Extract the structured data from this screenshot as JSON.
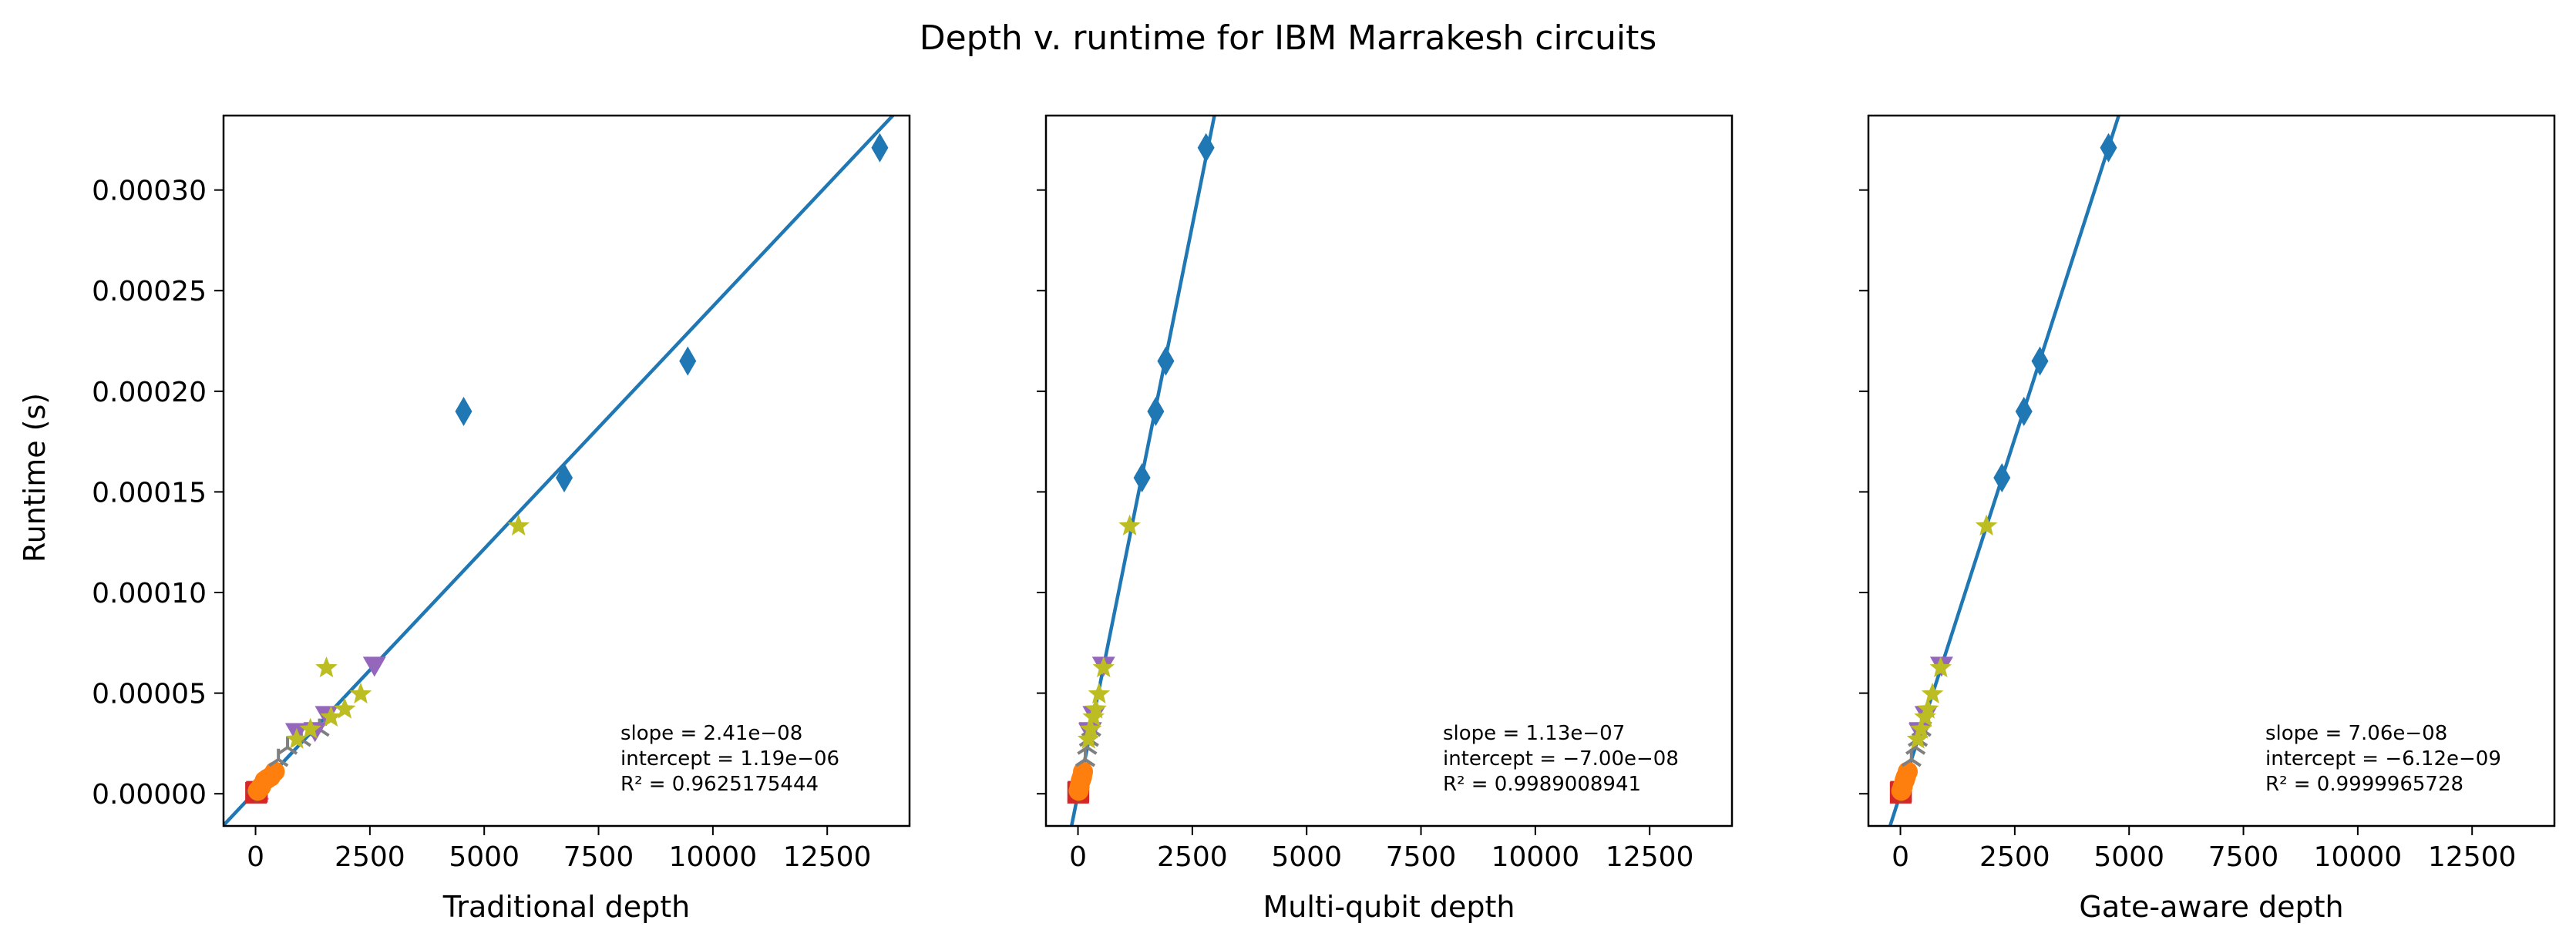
{
  "figure": {
    "title": "Depth v. runtime for IBM Marrakesh circuits",
    "ylabel": "Runtime (s)"
  },
  "chart_data": [
    {
      "type": "scatter",
      "xlabel": "Traditional depth",
      "ylabel": "Runtime (s)",
      "xlim": [
        -700,
        14300
      ],
      "ylim": [
        -1.6e-05,
        0.000337
      ],
      "xticks": [
        0,
        2500,
        5000,
        7500,
        10000,
        12500
      ],
      "yticks": [
        0.0,
        5e-05,
        0.0001,
        0.00015,
        0.0002,
        0.00025,
        0.0003
      ],
      "ytick_labels": [
        "0.00000",
        "0.00005",
        "0.00010",
        "0.00015",
        "0.00020",
        "0.00025",
        "0.00030"
      ],
      "fit": {
        "slope": 2.41e-08,
        "intercept": 1.19e-06
      },
      "annotation": {
        "slope": "slope = 2.41e−08",
        "intercept": "intercept = 1.19e−06",
        "r2": "R² = 0.9625175444"
      },
      "series": [
        {
          "marker": "diamond",
          "color": "#1f77b4",
          "points": [
            [
              13650,
              0.000321
            ],
            [
              9450,
              0.000215
            ],
            [
              6750,
              0.000157
            ],
            [
              4550,
              0.00019
            ]
          ]
        },
        {
          "marker": "star",
          "color": "#bcbd22",
          "points": [
            [
              5750,
              0.000133
            ],
            [
              1550,
              6.25e-05
            ],
            [
              2300,
              4.95e-05
            ],
            [
              1950,
              4.2e-05
            ],
            [
              1650,
              3.8e-05
            ],
            [
              1200,
              3.2e-05
            ],
            [
              900,
              2.7e-05
            ]
          ]
        },
        {
          "marker": "triangle-down",
          "color": "#9467bd",
          "points": [
            [
              2600,
              6.35e-05
            ],
            [
              1550,
              3.9e-05
            ],
            [
              1300,
              3.1e-05
            ],
            [
              900,
              3.05e-05
            ]
          ]
        },
        {
          "marker": "tri",
          "color": "#7f7f7f",
          "points": [
            [
              1400,
              3.2e-05
            ],
            [
              1000,
              2.7e-05
            ],
            [
              700,
              2.3e-05
            ],
            [
              500,
              1.7e-05
            ]
          ]
        },
        {
          "marker": "circle",
          "color": "#ff7f0e",
          "points": [
            [
              420,
              1.1e-05
            ],
            [
              330,
              8.5e-06
            ],
            [
              260,
              7.5e-06
            ],
            [
              200,
              6.5e-06
            ],
            [
              120,
              3.5e-06
            ],
            [
              50,
              1.5e-06
            ]
          ]
        },
        {
          "marker": "pentagon",
          "color": "#2ca02c",
          "points": [
            [
              160,
              4.5e-06
            ],
            [
              80,
              2e-06
            ]
          ]
        },
        {
          "marker": "plus",
          "color": "#8c564b",
          "points": [
            [
              60,
              2e-06
            ],
            [
              20,
              1e-06
            ]
          ]
        },
        {
          "marker": "square",
          "color": "#d62728",
          "points": [
            [
              30,
              1e-06
            ],
            [
              10,
              5e-07
            ]
          ]
        },
        {
          "marker": "x",
          "color": "#e377c2",
          "points": [
            [
              80,
              1e-06
            ],
            [
              15,
              5e-07
            ]
          ]
        }
      ]
    },
    {
      "type": "scatter",
      "xlabel": "Multi-qubit depth",
      "ylabel": "",
      "xlim": [
        -700,
        14300
      ],
      "ylim": [
        -1.6e-05,
        0.000337
      ],
      "xticks": [
        0,
        2500,
        5000,
        7500,
        10000,
        12500
      ],
      "fit": {
        "slope": 1.13e-07,
        "intercept": -7e-08
      },
      "annotation": {
        "slope": "slope = 1.13e−07",
        "intercept": "intercept = −7.00e−08",
        "r2": "R² = 0.9989008941"
      },
      "series": [
        {
          "marker": "diamond",
          "color": "#1f77b4",
          "points": [
            [
              2800,
              0.000321
            ],
            [
              1920,
              0.000215
            ],
            [
              1700,
              0.00019
            ],
            [
              1400,
              0.000157
            ]
          ]
        },
        {
          "marker": "star",
          "color": "#bcbd22",
          "points": [
            [
              1130,
              0.000133
            ],
            [
              560,
              6.25e-05
            ],
            [
              460,
              4.95e-05
            ],
            [
              390,
              4.2e-05
            ],
            [
              340,
              3.8e-05
            ],
            [
              280,
              3.2e-05
            ],
            [
              230,
              2.7e-05
            ]
          ]
        },
        {
          "marker": "triangle-down",
          "color": "#9467bd",
          "points": [
            [
              560,
              6.35e-05
            ],
            [
              350,
              3.9e-05
            ],
            [
              270,
              3.1e-05
            ],
            [
              260,
              3.05e-05
            ]
          ]
        },
        {
          "marker": "tri",
          "color": "#7f7f7f",
          "points": [
            [
              290,
              3.2e-05
            ],
            [
              240,
              2.7e-05
            ],
            [
              200,
              2.3e-05
            ],
            [
              160,
              1.7e-05
            ]
          ]
        },
        {
          "marker": "circle",
          "color": "#ff7f0e",
          "points": [
            [
              110,
              1.1e-05
            ],
            [
              90,
              8.5e-06
            ],
            [
              75,
              7.5e-06
            ],
            [
              60,
              6.5e-06
            ],
            [
              35,
              3.5e-06
            ],
            [
              15,
              1.5e-06
            ]
          ]
        },
        {
          "marker": "pentagon",
          "color": "#2ca02c",
          "points": [
            [
              45,
              4.5e-06
            ],
            [
              20,
              2e-06
            ]
          ]
        },
        {
          "marker": "plus",
          "color": "#8c564b",
          "points": [
            [
              20,
              2e-06
            ],
            [
              8,
              1e-06
            ]
          ]
        },
        {
          "marker": "square",
          "color": "#d62728",
          "points": [
            [
              10,
              1e-06
            ],
            [
              3,
              5e-07
            ]
          ]
        },
        {
          "marker": "x",
          "color": "#e377c2",
          "points": [
            [
              12,
              1e-06
            ],
            [
              4,
              5e-07
            ]
          ]
        }
      ]
    },
    {
      "type": "scatter",
      "xlabel": "Gate-aware depth",
      "ylabel": "",
      "xlim": [
        -700,
        14300
      ],
      "ylim": [
        -1.6e-05,
        0.000337
      ],
      "xticks": [
        0,
        2500,
        5000,
        7500,
        10000,
        12500
      ],
      "fit": {
        "slope": 7.06e-08,
        "intercept": -6.12e-09
      },
      "annotation": {
        "slope": "slope = 7.06e−08",
        "intercept": "intercept = −6.12e−09",
        "r2": "R² = 0.9999965728"
      },
      "series": [
        {
          "marker": "diamond",
          "color": "#1f77b4",
          "points": [
            [
              4550,
              0.000321
            ],
            [
              3050,
              0.000215
            ],
            [
              2700,
              0.00019
            ],
            [
              2220,
              0.000157
            ]
          ]
        },
        {
          "marker": "star",
          "color": "#bcbd22",
          "points": [
            [
              1880,
              0.000133
            ],
            [
              880,
              6.25e-05
            ],
            [
              700,
              4.95e-05
            ],
            [
              600,
              4.2e-05
            ],
            [
              540,
              3.8e-05
            ],
            [
              450,
              3.2e-05
            ],
            [
              380,
              2.7e-05
            ]
          ]
        },
        {
          "marker": "triangle-down",
          "color": "#9467bd",
          "points": [
            [
              900,
              6.35e-05
            ],
            [
              560,
              3.9e-05
            ],
            [
              440,
              3.1e-05
            ],
            [
              430,
              3.05e-05
            ]
          ]
        },
        {
          "marker": "tri",
          "color": "#7f7f7f",
          "points": [
            [
              460,
              3.2e-05
            ],
            [
              380,
              2.7e-05
            ],
            [
              330,
              2.3e-05
            ],
            [
              240,
              1.7e-05
            ]
          ]
        },
        {
          "marker": "circle",
          "color": "#ff7f0e",
          "points": [
            [
              160,
              1.1e-05
            ],
            [
              120,
              8.5e-06
            ],
            [
              105,
              7.5e-06
            ],
            [
              90,
              6.5e-06
            ],
            [
              50,
              3.5e-06
            ],
            [
              20,
              1.5e-06
            ]
          ]
        },
        {
          "marker": "pentagon",
          "color": "#2ca02c",
          "points": [
            [
              65,
              4.5e-06
            ],
            [
              30,
              2e-06
            ]
          ]
        },
        {
          "marker": "plus",
          "color": "#8c564b",
          "points": [
            [
              30,
              2e-06
            ],
            [
              12,
              1e-06
            ]
          ]
        },
        {
          "marker": "square",
          "color": "#d62728",
          "points": [
            [
              14,
              1e-06
            ],
            [
              5,
              5e-07
            ]
          ]
        },
        {
          "marker": "x",
          "color": "#e377c2",
          "points": [
            [
              18,
              1e-06
            ],
            [
              6,
              5e-07
            ]
          ]
        }
      ]
    }
  ]
}
